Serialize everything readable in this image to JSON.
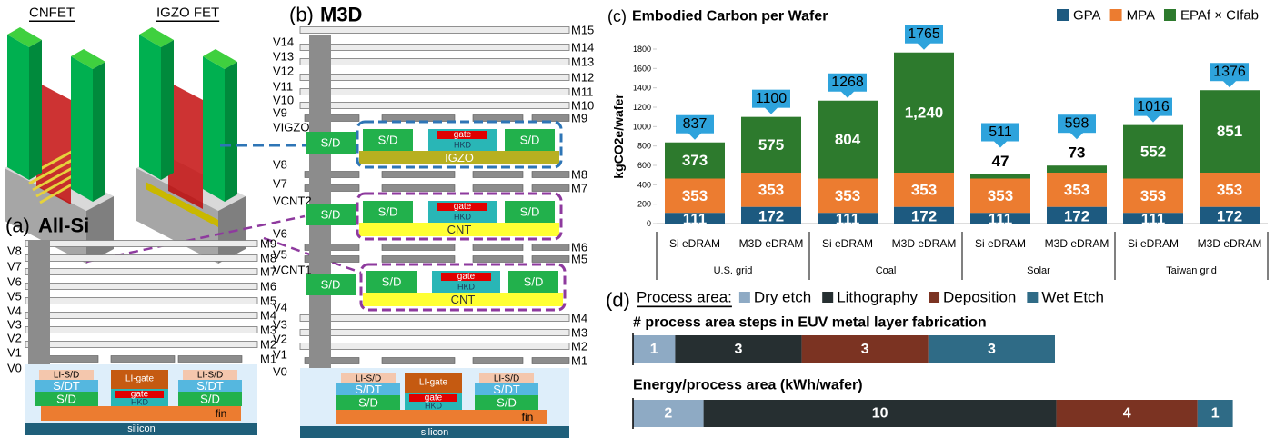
{
  "diagram": {
    "insets": {
      "cnfet": "CNFET",
      "igzo": "IGZO FET"
    },
    "device": {
      "li_sd": "LI-S/D",
      "sdt": "S/DT",
      "sd": "S/D",
      "li_gate": "LI-gate",
      "gate": "gate",
      "hkd": "HKD",
      "fin": "fin",
      "silicon": "silicon"
    },
    "a": {
      "panel": "(a)",
      "title": "All-Si",
      "vias": [
        "V8",
        "V7",
        "V6",
        "V5",
        "V4",
        "V3",
        "V2",
        "V1",
        "V0"
      ],
      "metals": [
        "M9",
        "M8",
        "M7",
        "M6",
        "M5",
        "M4",
        "M3",
        "M2",
        "M1"
      ]
    },
    "b": {
      "panel": "(b)",
      "title": "M3D",
      "vias": [
        "V14",
        "V13",
        "V12",
        "V11",
        "V10",
        "V9",
        "VIGZO",
        "V8",
        "V7",
        "VCNT2",
        "V6",
        "V5",
        "VCNT1",
        "V4",
        "V3",
        "V2",
        "V1",
        "V0"
      ],
      "metals": [
        "M15",
        "M14",
        "M13",
        "M12",
        "M11",
        "M10",
        "M9",
        "M8",
        "M7",
        "M6",
        "M5",
        "M4",
        "M3",
        "M2",
        "M1"
      ],
      "channels": [
        "IGZO",
        "CNT",
        "CNT"
      ]
    }
  },
  "process_area": {
    "panel": "(d)",
    "label": "Process area:",
    "items": [
      {
        "name": "Dry etch",
        "color": "#8eaac4"
      },
      {
        "name": "Lithography",
        "color": "#262f31"
      },
      {
        "name": "Deposition",
        "color": "#7b3322"
      },
      {
        "name": "Wet Etch",
        "color": "#2f6b86"
      }
    ]
  },
  "chart_data": [
    {
      "type": "stacked_bar",
      "panel": "(c)",
      "title": "Embodied Carbon per Wafer",
      "ylabel": "kgCO2e/wafer",
      "categories": [
        "Si eDRAM",
        "M3D eDRAM",
        "Si eDRAM",
        "M3D eDRAM",
        "Si eDRAM",
        "M3D eDRAM",
        "Si eDRAM",
        "M3D eDRAM"
      ],
      "groups": [
        "U.S. grid",
        "Coal",
        "Solar",
        "Taiwan grid"
      ],
      "series": [
        {
          "name": "GPA",
          "color": "#1d5a80",
          "values": [
            111,
            172,
            111,
            172,
            111,
            172,
            111,
            172
          ]
        },
        {
          "name": "MPA",
          "color": "#ec7c30",
          "values": [
            353,
            353,
            353,
            353,
            353,
            353,
            353,
            353
          ]
        },
        {
          "name": "EPAf × CIfab",
          "color": "#2d7a2d",
          "values": [
            373,
            575,
            804,
            1240,
            47,
            73,
            552,
            851
          ],
          "value_labels": [
            "373",
            "575",
            "804",
            "1,240",
            "47",
            "73",
            "552",
            "851"
          ]
        }
      ],
      "totals": [
        837,
        1100,
        1268,
        1765,
        511,
        598,
        1016,
        1376
      ],
      "ylim": [
        0,
        1800
      ],
      "yticks": [
        0,
        200,
        400,
        600,
        800,
        1000,
        1200,
        1400,
        1600,
        1800
      ],
      "legend": "top-right",
      "callout_color": "#2ea3dc"
    },
    {
      "type": "stacked_hbar",
      "title": "# process area steps in EUV metal layer fabrication",
      "values": [
        1,
        3,
        3,
        3
      ]
    },
    {
      "type": "stacked_hbar",
      "title": "Energy/process area (kWh/wafer)",
      "values": [
        2,
        10,
        4,
        1
      ]
    }
  ]
}
